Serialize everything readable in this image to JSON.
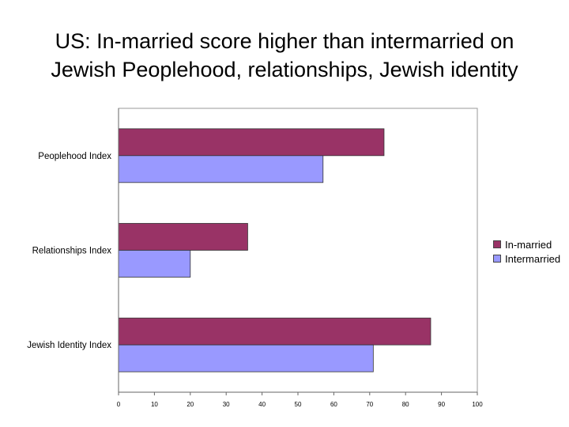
{
  "title_lines": [
    "US: In-married score higher than intermarried on",
    "Jewish Peoplehood, relationships, Jewish identity"
  ],
  "colors": {
    "inmarried": "#993366",
    "intermarried": "#9999ff"
  },
  "chart_data": {
    "type": "bar",
    "orientation": "horizontal",
    "title": "US: In-married score higher than intermarried on Jewish Peoplehood, relationships, Jewish identity",
    "categories": [
      "Peoplehood Index",
      "Relationships Index",
      "Jewish Identity Index"
    ],
    "series": [
      {
        "name": "In-married",
        "values": [
          74,
          36,
          87
        ]
      },
      {
        "name": "Intermarried",
        "values": [
          57,
          20,
          71
        ]
      }
    ],
    "xlim": [
      0,
      100
    ],
    "xticks": [
      0,
      10,
      20,
      30,
      40,
      50,
      60,
      70,
      80,
      90,
      100
    ],
    "xlabel": "",
    "ylabel": "",
    "grid": false,
    "legend_position": "right"
  }
}
